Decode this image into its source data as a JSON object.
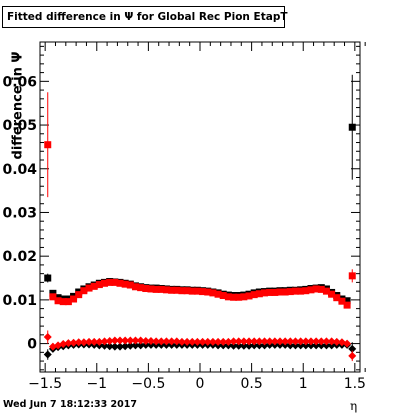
{
  "title": "Fitted difference in  Ψ  for Global Rec Pion EtapT",
  "footer": "Wed Jun  7 18:12:33 2017",
  "chart_data": {
    "type": "scatter",
    "xlabel": "η",
    "ylabel": "difference in Ψ",
    "xlim": [
      -1.55,
      1.55
    ],
    "ylim": [
      -0.0065,
      0.069
    ],
    "x_ticks": [
      -1.5,
      -1,
      -0.5,
      0,
      0.5,
      1,
      1.5
    ],
    "x_tick_labels": [
      "−1.5",
      "−1",
      "−0.5",
      "0",
      "0.5",
      "1",
      "1.5"
    ],
    "y_ticks": [
      0,
      0.01,
      0.02,
      0.03,
      0.04,
      0.05,
      0.06
    ],
    "y_tick_labels": [
      "0",
      "0.01",
      "0.02",
      "0.03",
      "0.04",
      "0.05",
      "0.06"
    ],
    "grid": false,
    "series": [
      {
        "color": "#000000",
        "marker": "square",
        "x": [
          -1.475,
          -1.425,
          -1.375,
          -1.325,
          -1.275,
          -1.225,
          -1.175,
          -1.125,
          -1.075,
          -1.025,
          -0.975,
          -0.925,
          -0.875,
          -0.825,
          -0.775,
          -0.725,
          -0.675,
          -0.625,
          -0.575,
          -0.525,
          -0.475,
          -0.425,
          -0.375,
          -0.325,
          -0.275,
          -0.225,
          -0.175,
          -0.125,
          -0.075,
          -0.025,
          0.025,
          0.075,
          0.125,
          0.175,
          0.225,
          0.275,
          0.325,
          0.375,
          0.425,
          0.475,
          0.525,
          0.575,
          0.625,
          0.675,
          0.725,
          0.775,
          0.825,
          0.875,
          0.925,
          0.975,
          1.025,
          1.075,
          1.125,
          1.175,
          1.225,
          1.275,
          1.325,
          1.375,
          1.425,
          1.475
        ],
        "y": [
          0.015,
          0.0115,
          0.0105,
          0.0102,
          0.0102,
          0.0108,
          0.0118,
          0.0125,
          0.013,
          0.0134,
          0.0138,
          0.014,
          0.0142,
          0.0141,
          0.014,
          0.0138,
          0.0136,
          0.0132,
          0.013,
          0.0128,
          0.0127,
          0.0127,
          0.0126,
          0.0125,
          0.0124,
          0.0124,
          0.0123,
          0.0123,
          0.0122,
          0.0122,
          0.0121,
          0.012,
          0.0118,
          0.0116,
          0.0113,
          0.0111,
          0.011,
          0.011,
          0.0111,
          0.0113,
          0.0116,
          0.0118,
          0.0119,
          0.012,
          0.012,
          0.0121,
          0.0121,
          0.0122,
          0.0122,
          0.0123,
          0.0124,
          0.0126,
          0.0127,
          0.0128,
          0.0125,
          0.0117,
          0.011,
          0.0102,
          0.0098,
          0.0495
        ],
        "yerr": [
          0.001,
          0.0006,
          0.0005,
          0.0005,
          0.0004,
          0.0004,
          0.0004,
          0.0004,
          0.0004,
          0.0004,
          0.0004,
          0.0004,
          0.0004,
          0.0004,
          0.0004,
          0.0004,
          0.0004,
          0.0004,
          0.0004,
          0.0004,
          0.0004,
          0.0004,
          0.0004,
          0.0004,
          0.0004,
          0.0004,
          0.0004,
          0.0004,
          0.0004,
          0.0004,
          0.0004,
          0.0004,
          0.0004,
          0.0004,
          0.0004,
          0.0004,
          0.0004,
          0.0004,
          0.0004,
          0.0004,
          0.0004,
          0.0004,
          0.0004,
          0.0004,
          0.0004,
          0.0004,
          0.0004,
          0.0004,
          0.0004,
          0.0004,
          0.0004,
          0.0004,
          0.0004,
          0.0004,
          0.0004,
          0.0004,
          0.0005,
          0.0005,
          0.0006,
          0.012
        ]
      },
      {
        "color": "#ff0000",
        "marker": "square",
        "x": [
          -1.475,
          -1.425,
          -1.375,
          -1.325,
          -1.275,
          -1.225,
          -1.175,
          -1.125,
          -1.075,
          -1.025,
          -0.975,
          -0.925,
          -0.875,
          -0.825,
          -0.775,
          -0.725,
          -0.675,
          -0.625,
          -0.575,
          -0.525,
          -0.475,
          -0.425,
          -0.375,
          -0.325,
          -0.275,
          -0.225,
          -0.175,
          -0.125,
          -0.075,
          -0.025,
          0.025,
          0.075,
          0.125,
          0.175,
          0.225,
          0.275,
          0.325,
          0.375,
          0.425,
          0.475,
          0.525,
          0.575,
          0.625,
          0.675,
          0.725,
          0.775,
          0.825,
          0.875,
          0.925,
          0.975,
          1.025,
          1.075,
          1.125,
          1.175,
          1.225,
          1.275,
          1.325,
          1.375,
          1.425,
          1.475
        ],
        "y": [
          0.0455,
          0.0107,
          0.0098,
          0.0096,
          0.0096,
          0.0102,
          0.0112,
          0.0121,
          0.0127,
          0.0131,
          0.0135,
          0.0138,
          0.014,
          0.014,
          0.0138,
          0.0136,
          0.0134,
          0.013,
          0.0128,
          0.0126,
          0.0125,
          0.0124,
          0.0124,
          0.0123,
          0.0122,
          0.0122,
          0.0121,
          0.0121,
          0.012,
          0.012,
          0.0119,
          0.0118,
          0.0116,
          0.0113,
          0.011,
          0.0107,
          0.0106,
          0.0106,
          0.0107,
          0.0109,
          0.0112,
          0.0114,
          0.0116,
          0.0117,
          0.0117,
          0.0118,
          0.0118,
          0.0119,
          0.012,
          0.012,
          0.0121,
          0.0123,
          0.0125,
          0.0124,
          0.012,
          0.0113,
          0.0105,
          0.0097,
          0.0088,
          0.0155
        ],
        "yerr": [
          0.012,
          0.0006,
          0.0005,
          0.0005,
          0.0004,
          0.0004,
          0.0004,
          0.0004,
          0.0004,
          0.0004,
          0.0004,
          0.0004,
          0.0004,
          0.0004,
          0.0004,
          0.0004,
          0.0004,
          0.0004,
          0.0004,
          0.0004,
          0.0004,
          0.0004,
          0.0004,
          0.0004,
          0.0004,
          0.0004,
          0.0004,
          0.0004,
          0.0004,
          0.0004,
          0.0004,
          0.0004,
          0.0004,
          0.0004,
          0.0004,
          0.0004,
          0.0004,
          0.0004,
          0.0004,
          0.0004,
          0.0004,
          0.0004,
          0.0004,
          0.0004,
          0.0004,
          0.0004,
          0.0004,
          0.0004,
          0.0004,
          0.0004,
          0.0004,
          0.0004,
          0.0004,
          0.0004,
          0.0004,
          0.0004,
          0.0005,
          0.0005,
          0.0006,
          0.0015
        ]
      },
      {
        "color": "#000000",
        "marker": "diamond",
        "x": [
          -1.475,
          -1.425,
          -1.375,
          -1.325,
          -1.275,
          -1.225,
          -1.175,
          -1.125,
          -1.075,
          -1.025,
          -0.975,
          -0.925,
          -0.875,
          -0.825,
          -0.775,
          -0.725,
          -0.675,
          -0.625,
          -0.575,
          -0.525,
          -0.475,
          -0.425,
          -0.375,
          -0.325,
          -0.275,
          -0.225,
          -0.175,
          -0.125,
          -0.075,
          -0.025,
          0.025,
          0.075,
          0.125,
          0.175,
          0.225,
          0.275,
          0.325,
          0.375,
          0.425,
          0.475,
          0.525,
          0.575,
          0.625,
          0.675,
          0.725,
          0.775,
          0.825,
          0.875,
          0.925,
          0.975,
          1.025,
          1.075,
          1.125,
          1.175,
          1.225,
          1.275,
          1.325,
          1.375,
          1.425,
          1.475
        ],
        "y": [
          -0.0025,
          -0.0012,
          -0.0008,
          -0.0006,
          -0.0004,
          -0.0003,
          -0.0002,
          -0.0002,
          -0.0002,
          -0.0003,
          -0.0004,
          -0.0005,
          -0.0006,
          -0.0007,
          -0.0007,
          -0.0006,
          -0.0005,
          -0.0004,
          -0.0004,
          -0.0003,
          -0.0003,
          -0.0003,
          -0.0003,
          -0.0003,
          -0.0003,
          -0.0003,
          -0.0003,
          -0.0003,
          -0.0003,
          -0.0003,
          -0.0003,
          -0.0003,
          -0.0003,
          -0.0004,
          -0.0004,
          -0.0004,
          -0.0005,
          -0.0005,
          -0.0005,
          -0.0005,
          -0.0004,
          -0.0004,
          -0.0004,
          -0.0003,
          -0.0003,
          -0.0003,
          -0.0003,
          -0.0004,
          -0.0004,
          -0.0004,
          -0.0004,
          -0.0004,
          -0.0004,
          -0.0004,
          -0.0004,
          -0.0004,
          -0.0003,
          -0.0003,
          -0.0003,
          -0.0012
        ],
        "yerr": [
          0.0012,
          0.0004,
          0.0003,
          0.0003,
          0.0003,
          0.0003,
          0.0003,
          0.0003,
          0.0003,
          0.0003,
          0.0003,
          0.0003,
          0.0003,
          0.0003,
          0.0003,
          0.0003,
          0.0003,
          0.0003,
          0.0003,
          0.0003,
          0.0003,
          0.0003,
          0.0003,
          0.0003,
          0.0003,
          0.0003,
          0.0003,
          0.0003,
          0.0003,
          0.0003,
          0.0003,
          0.0003,
          0.0003,
          0.0003,
          0.0003,
          0.0003,
          0.0003,
          0.0003,
          0.0003,
          0.0003,
          0.0003,
          0.0003,
          0.0003,
          0.0003,
          0.0003,
          0.0003,
          0.0003,
          0.0003,
          0.0003,
          0.0003,
          0.0003,
          0.0003,
          0.0003,
          0.0003,
          0.0003,
          0.0003,
          0.0003,
          0.0003,
          0.0004,
          0.0015
        ]
      },
      {
        "color": "#ff0000",
        "marker": "diamond",
        "x": [
          -1.475,
          -1.425,
          -1.375,
          -1.325,
          -1.275,
          -1.225,
          -1.175,
          -1.125,
          -1.075,
          -1.025,
          -0.975,
          -0.925,
          -0.875,
          -0.825,
          -0.775,
          -0.725,
          -0.675,
          -0.625,
          -0.575,
          -0.525,
          -0.475,
          -0.425,
          -0.375,
          -0.325,
          -0.275,
          -0.225,
          -0.175,
          -0.125,
          -0.075,
          -0.025,
          0.025,
          0.075,
          0.125,
          0.175,
          0.225,
          0.275,
          0.325,
          0.375,
          0.425,
          0.475,
          0.525,
          0.575,
          0.625,
          0.675,
          0.725,
          0.775,
          0.825,
          0.875,
          0.925,
          0.975,
          1.025,
          1.075,
          1.125,
          1.175,
          1.225,
          1.275,
          1.325,
          1.375,
          1.425,
          1.475
        ],
        "y": [
          0.0015,
          -0.0007,
          -0.0004,
          -0.0001,
          0.0001,
          0.0002,
          0.0003,
          0.0003,
          0.0004,
          0.0004,
          0.0004,
          0.0005,
          0.0006,
          0.0007,
          0.0007,
          0.0007,
          0.0007,
          0.0007,
          0.0007,
          0.0006,
          0.0006,
          0.0005,
          0.0005,
          0.0005,
          0.0005,
          0.0005,
          0.0004,
          0.0004,
          0.0004,
          0.0004,
          0.0004,
          0.0004,
          0.0004,
          0.0004,
          0.0004,
          0.0004,
          0.0005,
          0.0005,
          0.0005,
          0.0005,
          0.0005,
          0.0005,
          0.0005,
          0.0005,
          0.0005,
          0.0005,
          0.0005,
          0.0005,
          0.0005,
          0.0005,
          0.0005,
          0.0005,
          0.0005,
          0.0005,
          0.0005,
          0.0005,
          0.0004,
          0.0003,
          0.0,
          -0.0028
        ],
        "yerr": [
          0.0015,
          0.0004,
          0.0003,
          0.0003,
          0.0003,
          0.0003,
          0.0003,
          0.0003,
          0.0003,
          0.0003,
          0.0003,
          0.0003,
          0.0003,
          0.0003,
          0.0003,
          0.0003,
          0.0003,
          0.0003,
          0.0003,
          0.0003,
          0.0003,
          0.0003,
          0.0003,
          0.0003,
          0.0003,
          0.0003,
          0.0003,
          0.0003,
          0.0003,
          0.0003,
          0.0003,
          0.0003,
          0.0003,
          0.0003,
          0.0003,
          0.0003,
          0.0003,
          0.0003,
          0.0003,
          0.0003,
          0.0003,
          0.0003,
          0.0003,
          0.0003,
          0.0003,
          0.0003,
          0.0003,
          0.0003,
          0.0003,
          0.0003,
          0.0003,
          0.0003,
          0.0003,
          0.0003,
          0.0003,
          0.0003,
          0.0003,
          0.0003,
          0.0004,
          0.0012
        ]
      }
    ]
  }
}
